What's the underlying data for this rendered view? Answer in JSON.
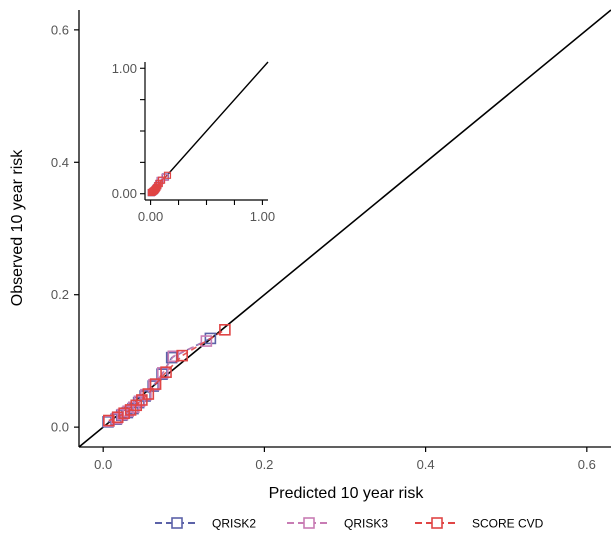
{
  "chart_data": {
    "type": "scatter",
    "xlabel": "Predicted 10 year risk",
    "ylabel": "Observed 10 year risk",
    "xlim": [
      -0.03,
      0.63
    ],
    "ylim": [
      -0.03,
      0.63
    ],
    "x_ticks": [
      0.0,
      0.2,
      0.4,
      0.6
    ],
    "x_tick_labels": [
      "0.0",
      "0.2",
      "0.4",
      "0.6"
    ],
    "y_ticks": [
      0.0,
      0.2,
      0.4,
      0.6
    ],
    "y_tick_labels": [
      "0.0",
      "0.2",
      "0.4",
      "0.6"
    ],
    "reference_line": "y = x",
    "grid": false,
    "legend_position": "bottom",
    "series": [
      {
        "name": "QRISK2",
        "color": "#5b62a8",
        "x": [
          0.006,
          0.016,
          0.023,
          0.03,
          0.037,
          0.044,
          0.052,
          0.062,
          0.073,
          0.085,
          0.133
        ],
        "y": [
          0.008,
          0.012,
          0.018,
          0.022,
          0.028,
          0.037,
          0.047,
          0.062,
          0.08,
          0.105,
          0.134
        ]
      },
      {
        "name": "QRISK3",
        "color": "#c87cb4",
        "x": [
          0.007,
          0.017,
          0.024,
          0.031,
          0.038,
          0.045,
          0.053,
          0.063,
          0.074,
          0.087,
          0.128
        ],
        "y": [
          0.009,
          0.013,
          0.019,
          0.024,
          0.03,
          0.039,
          0.049,
          0.064,
          0.082,
          0.107,
          0.13
        ]
      },
      {
        "name": "SCORE CVD",
        "color": "#e04545",
        "x": [
          0.007,
          0.018,
          0.026,
          0.034,
          0.041,
          0.048,
          0.056,
          0.065,
          0.078,
          0.098,
          0.151
        ],
        "y": [
          0.01,
          0.015,
          0.021,
          0.026,
          0.033,
          0.041,
          0.05,
          0.065,
          0.083,
          0.108,
          0.147
        ]
      }
    ],
    "inset": {
      "x_ticks": [
        0.0,
        1.0
      ],
      "x_tick_labels": [
        "0.00",
        "1.00"
      ],
      "y_ticks": [
        0.0,
        1.0
      ],
      "y_tick_labels": [
        "0.00",
        "1.00"
      ],
      "xlim": [
        -0.05,
        1.05
      ],
      "ylim": [
        -0.05,
        1.05
      ],
      "reference_line": "y = x"
    }
  }
}
